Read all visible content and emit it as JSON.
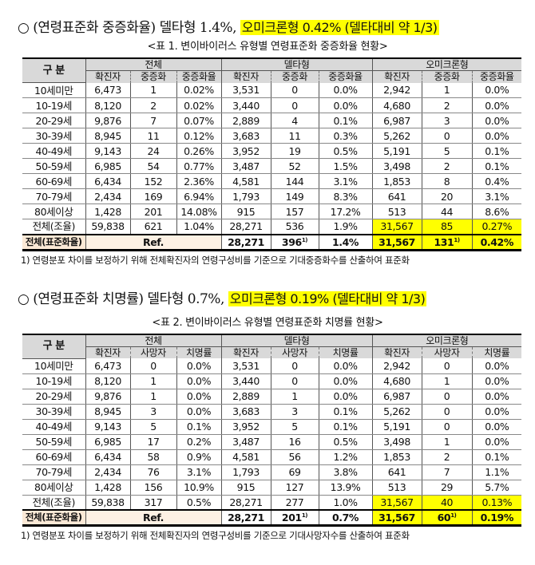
{
  "section1": {
    "heading": "○ (연령표준화 중증화율) 델타형 1.4%, ",
    "highlight": "오미크론형 0.42% (델타대비 약 1/3)"
  },
  "table1": {
    "caption": "<표 1. 변이바이러스 유형별 연령표준화 중증화율 현황>",
    "corner": "구 분",
    "groups": [
      "전체",
      "델타형",
      "오미크론형"
    ],
    "subheaders": [
      "확진자",
      "중증화",
      "중증화율"
    ],
    "rows": [
      [
        "10세미만",
        "6,473",
        "1",
        "0.02%",
        "3,531",
        "0",
        "0.0%",
        "2,942",
        "1",
        "0.0%"
      ],
      [
        "10-19세",
        "8,120",
        "2",
        "0.02%",
        "3,440",
        "0",
        "0.0%",
        "4,680",
        "2",
        "0.0%"
      ],
      [
        "20-29세",
        "9,876",
        "7",
        "0.07%",
        "2,889",
        "4",
        "0.1%",
        "6,987",
        "3",
        "0.0%"
      ],
      [
        "30-39세",
        "8,945",
        "11",
        "0.12%",
        "3,683",
        "11",
        "0.3%",
        "5,262",
        "0",
        "0.0%"
      ],
      [
        "40-49세",
        "9,143",
        "24",
        "0.26%",
        "3,952",
        "19",
        "0.5%",
        "5,191",
        "5",
        "0.1%"
      ],
      [
        "50-59세",
        "6,985",
        "54",
        "0.77%",
        "3,487",
        "52",
        "1.5%",
        "3,498",
        "2",
        "0.1%"
      ],
      [
        "60-69세",
        "6,434",
        "152",
        "2.36%",
        "4,581",
        "144",
        "3.1%",
        "1,853",
        "8",
        "0.4%"
      ],
      [
        "70-79세",
        "2,434",
        "169",
        "6.94%",
        "1,793",
        "149",
        "8.3%",
        "641",
        "20",
        "3.1%"
      ],
      [
        "80세이상",
        "1,428",
        "201",
        "14.08%",
        "915",
        "157",
        "17.2%",
        "513",
        "44",
        "8.6%"
      ],
      [
        "전체(조율)",
        "59,838",
        "621",
        "1.04%",
        "28,271",
        "536",
        "1.9%",
        "31,567",
        "85",
        "0.27%"
      ]
    ],
    "std": {
      "label": "전체(표준화율)",
      "ref": "Ref.",
      "cells": [
        "28,271",
        "396",
        "1.4%",
        "31,567",
        "131",
        "0.42%"
      ],
      "sup": "1)"
    },
    "note": "1) 연령분포 차이를 보정하기 위해 전체확진자의 연령구성비를 기준으로 기대중증화수를 산출하여 표준화"
  },
  "section2": {
    "heading": "○ (연령표준화 치명률) 델타형 0.7%, ",
    "highlight": "오미크론형 0.19% (델타대비 약 1/3)"
  },
  "table2": {
    "caption": "<표 2. 변이바이러스 유형별 연령표준화 치명률 현황>",
    "corner": "구 분",
    "groups": [
      "전체",
      "델타형",
      "오미크론형"
    ],
    "subheaders": [
      "확진자",
      "사망자",
      "치명률"
    ],
    "rows": [
      [
        "10세미만",
        "6,473",
        "0",
        "0.0%",
        "3,531",
        "0",
        "0.0%",
        "2,942",
        "0",
        "0.0%"
      ],
      [
        "10-19세",
        "8,120",
        "1",
        "0.0%",
        "3,440",
        "0",
        "0.0%",
        "4,680",
        "1",
        "0.0%"
      ],
      [
        "20-29세",
        "9,876",
        "1",
        "0.0%",
        "2,889",
        "1",
        "0.0%",
        "6,987",
        "0",
        "0.0%"
      ],
      [
        "30-39세",
        "8,945",
        "3",
        "0.0%",
        "3,683",
        "3",
        "0.1%",
        "5,262",
        "0",
        "0.0%"
      ],
      [
        "40-49세",
        "9,143",
        "5",
        "0.1%",
        "3,952",
        "5",
        "0.1%",
        "5,191",
        "0",
        "0.0%"
      ],
      [
        "50-59세",
        "6,985",
        "17",
        "0.2%",
        "3,487",
        "16",
        "0.5%",
        "3,498",
        "1",
        "0.0%"
      ],
      [
        "60-69세",
        "6,434",
        "58",
        "0.9%",
        "4,581",
        "56",
        "1.2%",
        "1,853",
        "2",
        "0.1%"
      ],
      [
        "70-79세",
        "2,434",
        "76",
        "3.1%",
        "1,793",
        "69",
        "3.8%",
        "641",
        "7",
        "1.1%"
      ],
      [
        "80세이상",
        "1,428",
        "156",
        "10.9%",
        "915",
        "127",
        "13.9%",
        "513",
        "29",
        "5.7%"
      ],
      [
        "전체(조율)",
        "59,838",
        "317",
        "0.5%",
        "28,271",
        "277",
        "1.0%",
        "31,567",
        "40",
        "0.13%"
      ]
    ],
    "std": {
      "label": "전체(표준화율)",
      "ref": "Ref.",
      "cells": [
        "28,271",
        "201",
        "0.7%",
        "31,567",
        "60",
        "0.19%"
      ],
      "sup": "1)"
    },
    "note": "1) 연령분포 차이를 보정하기 위해 전체확진자의 연령구성비를 기준으로 기대사망자수를 산출하여 표준화"
  },
  "colors": {
    "highlight": "#ffff00",
    "header": "#d9d9d9",
    "std_label": "#fbe9d6"
  }
}
